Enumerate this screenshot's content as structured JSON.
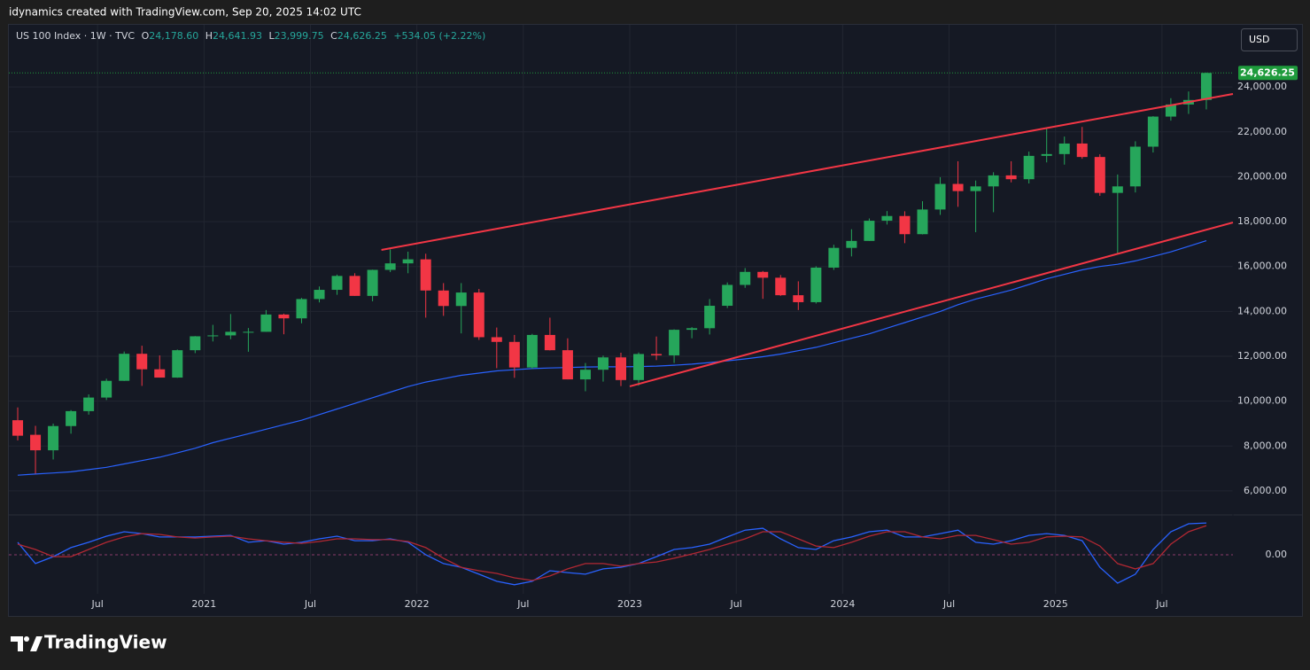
{
  "banner": "idynamics created with TradingView.com, Sep 20, 2025 14:02 UTC",
  "brand": "TradingView",
  "currency_button": "USD",
  "header": {
    "symbol": "US 100 Index · 1W · TVC",
    "items": [
      {
        "key": "O",
        "value": "24,178.60"
      },
      {
        "key": "H",
        "value": "24,641.93"
      },
      {
        "key": "L",
        "value": "23,999.75"
      },
      {
        "key": "C",
        "value": "24,626.25"
      }
    ],
    "change": "+534.05 (+2.22%)"
  },
  "chart_data": {
    "type": "candlestick",
    "x": [
      "2020-02",
      "2020-03",
      "2020-04",
      "2020-05",
      "2020-06",
      "2020-07",
      "2020-08",
      "2020-09",
      "2020-10",
      "2020-11",
      "2020-12",
      "2021-01",
      "2021-02",
      "2021-03",
      "2021-04",
      "2021-05",
      "2021-06",
      "2021-07",
      "2021-08",
      "2021-09",
      "2021-10",
      "2021-11",
      "2021-12",
      "2022-01",
      "2022-02",
      "2022-03",
      "2022-04",
      "2022-05",
      "2022-06",
      "2022-07",
      "2022-08",
      "2022-09",
      "2022-10",
      "2022-11",
      "2022-12",
      "2023-01",
      "2023-02",
      "2023-03",
      "2023-04",
      "2023-05",
      "2023-06",
      "2023-07",
      "2023-08",
      "2023-09",
      "2023-10",
      "2023-11",
      "2023-12",
      "2024-01",
      "2024-02",
      "2024-03",
      "2024-04",
      "2024-05",
      "2024-06",
      "2024-07",
      "2024-08",
      "2024-09",
      "2024-10",
      "2024-11",
      "2024-12",
      "2025-01",
      "2025-02",
      "2025-03",
      "2025-04",
      "2025-05",
      "2025-06",
      "2025-07",
      "2025-08",
      "2025-09"
    ],
    "open": [
      9150,
      8500,
      7810,
      8890,
      9555,
      10160,
      10905,
      12110,
      11420,
      11050,
      12270,
      12890,
      12930,
      13090,
      13090,
      13860,
      13690,
      14550,
      14960,
      15580,
      14690,
      15850,
      16140,
      16320,
      14930,
      14240,
      14840,
      12850,
      12640,
      11500,
      12950,
      12270,
      10970,
      11400,
      11950,
      10940,
      12100,
      12040,
      13180,
      13250,
      14250,
      15180,
      15760,
      15500,
      14720,
      14410,
      15950,
      16830,
      17140,
      18040,
      18250,
      17440,
      18540,
      19680,
      19360,
      19570,
      20060,
      19890,
      20930,
      21010,
      21480,
      20880,
      19280,
      19570,
      21340,
      22680,
      23220,
      23420
    ],
    "high": [
      9720,
      8900,
      9000,
      9600,
      10300,
      11000,
      12210,
      12470,
      12040,
      12300,
      12900,
      13400,
      13880,
      13260,
      14060,
      13900,
      14600,
      15110,
      15640,
      15700,
      15860,
      16760,
      16660,
      16570,
      15260,
      15260,
      15000,
      13280,
      12950,
      13000,
      13720,
      12800,
      11700,
      12030,
      12160,
      12170,
      12880,
      13200,
      13300,
      14550,
      15290,
      15930,
      15800,
      15620,
      15340,
      16010,
      16970,
      17660,
      18140,
      18470,
      18460,
      18910,
      19980,
      20690,
      19830,
      20200,
      20690,
      21120,
      22130,
      21790,
      22220,
      21000,
      20100,
      21580,
      22700,
      23500,
      23800,
      24641.93
    ],
    "low": [
      8250,
      6770,
      7400,
      8550,
      9400,
      10050,
      10900,
      10680,
      11050,
      11040,
      12140,
      12660,
      12760,
      12200,
      13090,
      12980,
      13470,
      14400,
      14740,
      14690,
      14450,
      15750,
      15700,
      13720,
      13800,
      13020,
      12730,
      11470,
      11040,
      11430,
      12260,
      10970,
      10440,
      10870,
      10670,
      10690,
      11830,
      11700,
      12800,
      12970,
      14150,
      15050,
      14560,
      14690,
      14060,
      14350,
      15850,
      16450,
      17140,
      17870,
      17040,
      17430,
      18300,
      18660,
      17530,
      18420,
      19750,
      19700,
      20640,
      20540,
      20800,
      19150,
      16540,
      19300,
      21080,
      22500,
      22800,
      23000
    ],
    "close": [
      8460,
      7810,
      8890,
      9555,
      10160,
      10905,
      12110,
      11420,
      11050,
      12270,
      12890,
      12930,
      13090,
      13090,
      13860,
      13690,
      14550,
      14960,
      15580,
      14690,
      15850,
      16140,
      16320,
      14930,
      14240,
      14840,
      12850,
      12640,
      11500,
      12950,
      12270,
      10970,
      11400,
      11950,
      10940,
      12100,
      12040,
      13180,
      13250,
      14250,
      15180,
      15760,
      15500,
      14720,
      14410,
      15950,
      16830,
      17140,
      18040,
      18250,
      17440,
      18540,
      19680,
      19360,
      19570,
      20060,
      19890,
      20930,
      21010,
      21480,
      20880,
      19280,
      19570,
      21340,
      22680,
      23220,
      23420,
      24626.25
    ],
    "up_color": "#26a65b",
    "down_color": "#f23645",
    "overlays": [
      {
        "color": "#2962ff",
        "values": [
          6700,
          6750,
          6800,
          6850,
          6950,
          7050,
          7200,
          7350,
          7500,
          7700,
          7900,
          8150,
          8350,
          8550,
          8750,
          8950,
          9150,
          9400,
          9650,
          9900,
          10150,
          10400,
          10650,
          10850,
          11000,
          11150,
          11250,
          11350,
          11400,
          11450,
          11480,
          11500,
          11520,
          11530,
          11530,
          11540,
          11560,
          11600,
          11650,
          11720,
          11800,
          11880,
          11980,
          12100,
          12250,
          12400,
          12600,
          12800,
          13000,
          13250,
          13500,
          13750,
          14000,
          14300,
          14550,
          14750,
          14950,
          15200,
          15450,
          15650,
          15850,
          16000,
          16100,
          16250,
          16450,
          16650,
          16900,
          17150
        ]
      }
    ],
    "drawings": [
      {
        "type": "trendline",
        "color": "#f23645",
        "points": [
          {
            "x": "2021-11",
            "y": 16740
          },
          {
            "x": "2025-11",
            "y": 23690
          }
        ]
      },
      {
        "type": "trendline",
        "color": "#f23645",
        "points": [
          {
            "x": "2023-01",
            "y": 10660
          },
          {
            "x": "2025-11",
            "y": 17960
          }
        ]
      }
    ],
    "xlim": [
      "2020-02",
      "2025-11"
    ],
    "xticks": [
      {
        "value": "2020-07",
        "label": "Jul"
      },
      {
        "value": "2021-01",
        "label": "2021"
      },
      {
        "value": "2021-07",
        "label": "Jul"
      },
      {
        "value": "2022-01",
        "label": "2022"
      },
      {
        "value": "2022-07",
        "label": "Jul"
      },
      {
        "value": "2023-01",
        "label": "2023"
      },
      {
        "value": "2023-07",
        "label": "Jul"
      },
      {
        "value": "2024-01",
        "label": "2024"
      },
      {
        "value": "2024-07",
        "label": "Jul"
      },
      {
        "value": "2025-01",
        "label": "2025"
      },
      {
        "value": "2025-07",
        "label": "Jul"
      }
    ],
    "ylim": [
      4970,
      26770
    ],
    "yticks": [
      {
        "value": 6000,
        "label": "6,000.00"
      },
      {
        "value": 8000,
        "label": "8,000.00"
      },
      {
        "value": 10000,
        "label": "10,000.00"
      },
      {
        "value": 12000,
        "label": "12,000.00"
      },
      {
        "value": 14000,
        "label": "14,000.00"
      },
      {
        "value": 16000,
        "label": "16,000.00"
      },
      {
        "value": 18000,
        "label": "18,000.00"
      },
      {
        "value": 20000,
        "label": "20,000.00"
      },
      {
        "value": 22000,
        "label": "22,000.00"
      },
      {
        "value": 24000,
        "label": "24,000.00"
      }
    ],
    "grid": true,
    "last_price": {
      "value": 24626.25,
      "label": "24,626.25",
      "color": "#1e9b3c"
    },
    "indicator": {
      "ylim": [
        -1.47,
        1.47
      ],
      "yticks": [
        {
          "value": 0,
          "label": "0.00"
        }
      ],
      "series": [
        {
          "color": "#2962ff",
          "values": [
            0.47,
            -0.33,
            -0.07,
            0.27,
            0.47,
            0.7,
            0.87,
            0.8,
            0.67,
            0.67,
            0.67,
            0.7,
            0.73,
            0.47,
            0.53,
            0.4,
            0.47,
            0.6,
            0.7,
            0.53,
            0.53,
            0.6,
            0.47,
            0,
            -0.33,
            -0.47,
            -0.73,
            -1.0,
            -1.13,
            -1.0,
            -0.6,
            -0.67,
            -0.73,
            -0.53,
            -0.47,
            -0.33,
            -0.07,
            0.2,
            0.27,
            0.4,
            0.67,
            0.93,
            1.0,
            0.6,
            0.27,
            0.2,
            0.53,
            0.67,
            0.87,
            0.93,
            0.67,
            0.67,
            0.8,
            0.93,
            0.47,
            0.4,
            0.53,
            0.73,
            0.8,
            0.73,
            0.53,
            -0.47,
            -1.07,
            -0.73,
            0.2,
            0.87,
            1.17,
            1.2
          ]
        },
        {
          "color": "#b22833",
          "values": [
            0.4,
            0.2,
            -0.07,
            -0.07,
            0.2,
            0.47,
            0.67,
            0.8,
            0.77,
            0.67,
            0.63,
            0.67,
            0.7,
            0.6,
            0.53,
            0.47,
            0.43,
            0.5,
            0.6,
            0.6,
            0.57,
            0.57,
            0.5,
            0.27,
            -0.13,
            -0.47,
            -0.6,
            -0.7,
            -0.87,
            -0.97,
            -0.8,
            -0.53,
            -0.33,
            -0.33,
            -0.43,
            -0.33,
            -0.27,
            -0.13,
            0.03,
            0.2,
            0.4,
            0.6,
            0.87,
            0.87,
            0.6,
            0.33,
            0.27,
            0.47,
            0.7,
            0.87,
            0.87,
            0.67,
            0.6,
            0.73,
            0.73,
            0.57,
            0.4,
            0.47,
            0.67,
            0.7,
            0.67,
            0.33,
            -0.33,
            -0.53,
            -0.33,
            0.4,
            0.87,
            1.1
          ]
        }
      ]
    }
  }
}
